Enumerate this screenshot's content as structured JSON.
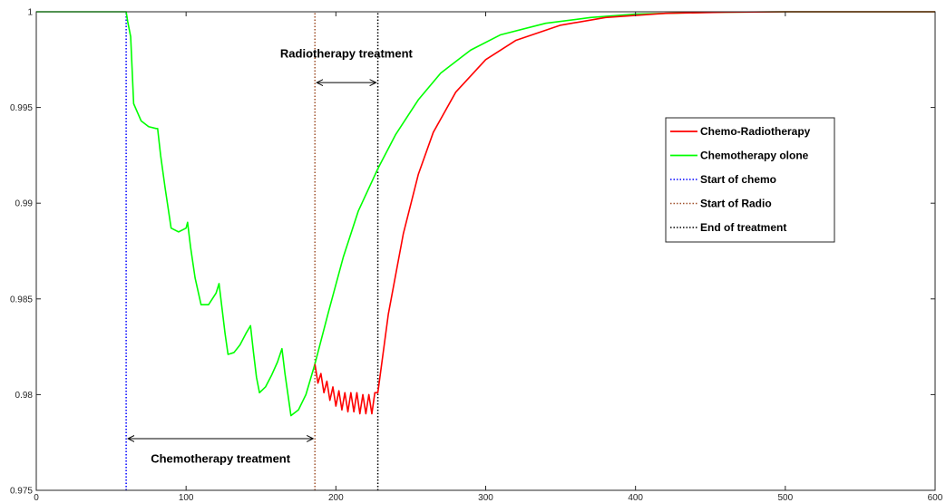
{
  "chart_data": {
    "type": "line",
    "title": "",
    "xlabel": "",
    "ylabel": "",
    "xlim": [
      0,
      600
    ],
    "ylim": [
      0.975,
      1
    ],
    "xticks": [
      0,
      100,
      200,
      300,
      400,
      500,
      600
    ],
    "yticks": [
      0.975,
      0.98,
      0.985,
      0.99,
      0.995,
      1
    ],
    "xtick_labels": [
      "0",
      "100",
      "200",
      "300",
      "400",
      "500",
      "600"
    ],
    "ytick_labels": [
      "0.975",
      "0.98",
      "0.985",
      "0.99",
      "0.995",
      "1"
    ],
    "grid": false,
    "legend_position": "right",
    "series": [
      {
        "name": "Chemo-Radiotherapy",
        "color": "#ff0000",
        "style": "solid",
        "x": [
          186,
          188,
          190,
          192,
          194,
          196,
          198,
          200,
          202,
          204,
          206,
          208,
          210,
          212,
          214,
          216,
          218,
          220,
          222,
          224,
          226,
          228,
          235,
          245,
          255,
          265,
          280,
          300,
          320,
          350,
          380,
          420,
          460,
          500,
          600
        ],
        "y": [
          0.9816,
          0.9806,
          0.9811,
          0.9801,
          0.9807,
          0.9797,
          0.9804,
          0.9794,
          0.9802,
          0.9792,
          0.9801,
          0.9791,
          0.9801,
          0.9791,
          0.9801,
          0.979,
          0.98,
          0.979,
          0.98,
          0.979,
          0.9801,
          0.9801,
          0.9842,
          0.9884,
          0.9915,
          0.9937,
          0.9958,
          0.9975,
          0.9985,
          0.9993,
          0.9997,
          0.99992,
          0.99998,
          1.0,
          1.0
        ]
      },
      {
        "name": "Chemotherapy olone",
        "color": "#00ff00",
        "style": "solid",
        "x": [
          0,
          60,
          61,
          63,
          65,
          70,
          75,
          80,
          81,
          83,
          86,
          90,
          95,
          100,
          101,
          103,
          106,
          110,
          115,
          120,
          122,
          124,
          126,
          128,
          132,
          136,
          140,
          143,
          145,
          147,
          149,
          153,
          157,
          161,
          164,
          166,
          168,
          170,
          175,
          180,
          186,
          195,
          205,
          215,
          228,
          240,
          255,
          270,
          290,
          310,
          340,
          370,
          400,
          450,
          500,
          600
        ],
        "y": [
          1.0,
          1.0,
          0.9995,
          0.9987,
          0.9952,
          0.9943,
          0.994,
          0.9939,
          0.9939,
          0.9925,
          0.9908,
          0.9887,
          0.9885,
          0.9887,
          0.989,
          0.9877,
          0.9861,
          0.9847,
          0.9847,
          0.9853,
          0.9858,
          0.9845,
          0.9832,
          0.9821,
          0.9822,
          0.9826,
          0.9832,
          0.9836,
          0.9822,
          0.9809,
          0.9801,
          0.9804,
          0.981,
          0.9817,
          0.9824,
          0.9811,
          0.98,
          0.9789,
          0.9792,
          0.98,
          0.9816,
          0.9843,
          0.9872,
          0.9896,
          0.9918,
          0.9936,
          0.9954,
          0.9968,
          0.998,
          0.9988,
          0.9994,
          0.9997,
          0.99988,
          0.99997,
          1.0,
          1.0
        ]
      },
      {
        "name": "Start of chemo",
        "color": "#0000ff",
        "style": "dotted",
        "x": [
          60,
          60
        ],
        "y": [
          0.975,
          1
        ]
      },
      {
        "name": "Start of Radio",
        "color": "#a0522d",
        "style": "dotted",
        "x": [
          186,
          186
        ],
        "y": [
          0.975,
          1
        ]
      },
      {
        "name": "End of treatment",
        "color": "#000000",
        "style": "dotted",
        "x": [
          228,
          228
        ],
        "y": [
          0.975,
          1
        ]
      }
    ],
    "annotations": [
      {
        "text": "Radiotherapy treatment",
        "x_start": 186,
        "x_end": 228,
        "arrow_y": 0.9963,
        "text_x": 207,
        "text_y": 0.9976
      },
      {
        "text": "Chemotherapy treatment",
        "x_start": 60,
        "x_end": 186,
        "arrow_y": 0.9777,
        "text_x": 123,
        "text_y": 0.97645
      }
    ]
  }
}
